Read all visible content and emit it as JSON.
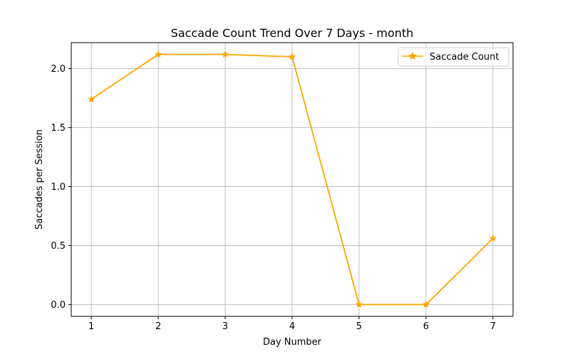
{
  "chart_data": {
    "type": "line",
    "title": "Saccade Count Trend Over 7 Days - month",
    "xlabel": "Day Number",
    "ylabel": "Saccades per Session",
    "x": [
      1,
      2,
      3,
      4,
      5,
      6,
      7
    ],
    "xlim": [
      0.7,
      7.3
    ],
    "ylim": [
      -0.1,
      2.22
    ],
    "xticks": [
      "1",
      "2",
      "3",
      "4",
      "5",
      "6",
      "7"
    ],
    "yticks": [
      0.0,
      0.5,
      1.0,
      1.5,
      2.0
    ],
    "ytick_labels": [
      "0.0",
      "0.5",
      "1.0",
      "1.5",
      "2.0"
    ],
    "grid": true,
    "legend_position": "top-right",
    "series": [
      {
        "name": "Saccade Count",
        "color": "#FFA500",
        "marker": "star",
        "values": [
          1.74,
          2.12,
          2.12,
          2.1,
          0.0,
          0.0,
          0.56
        ]
      }
    ]
  }
}
